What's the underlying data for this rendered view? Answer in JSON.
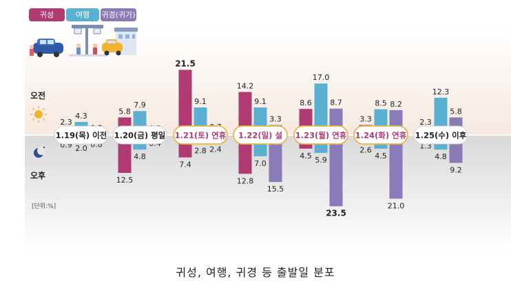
{
  "caption": "귀성, 여행, 귀경 등 출발일 분포",
  "unit": "[단위:%]",
  "am_label": "오전",
  "pm_label": "오후",
  "colors": {
    "homecoming": "#b03a72",
    "travel": "#5ab0d0",
    "return": "#8a7ab8",
    "highlight": "#b03a72",
    "normal": "#222222",
    "gold": "#e9b949"
  },
  "icons": [
    "car-family-icon",
    "train-station-icon",
    "taxi-house-icon",
    "sun-icon",
    "moon-icon"
  ],
  "chart_data": {
    "type": "bar",
    "title": "",
    "categories": [
      "1.19(목) 이전",
      "1.20(금) 평일",
      "1.21(토) 연휴",
      "1.22(일) 설",
      "1.23(월) 연휴",
      "1.24(화) 연휴",
      "1.25(수) 이후"
    ],
    "category_highlight": [
      false,
      false,
      true,
      true,
      true,
      true,
      false
    ],
    "series": [
      {
        "name": "귀성",
        "am": [
          2.3,
          5.8,
          21.5,
          14.2,
          8.6,
          3.3,
          2.3
        ],
        "pm": [
          0.9,
          12.5,
          7.4,
          12.8,
          4.5,
          2.6,
          1.3
        ]
      },
      {
        "name": "여행",
        "am": [
          4.3,
          7.9,
          9.1,
          9.1,
          17.0,
          8.5,
          12.3
        ],
        "pm": [
          2.0,
          4.8,
          2.8,
          7.0,
          5.9,
          4.5,
          4.8
        ]
      },
      {
        "name": "귀경(귀가)",
        "am": [
          0.3,
          0.2,
          0.7,
          3.3,
          8.7,
          8.2,
          5.8
        ],
        "pm": [
          0.8,
          0.4,
          2.4,
          15.5,
          23.5,
          21.0,
          9.2
        ]
      }
    ],
    "bold_labels": [
      "21.5",
      "23.5"
    ],
    "xlabel": "",
    "ylabel": ""
  }
}
